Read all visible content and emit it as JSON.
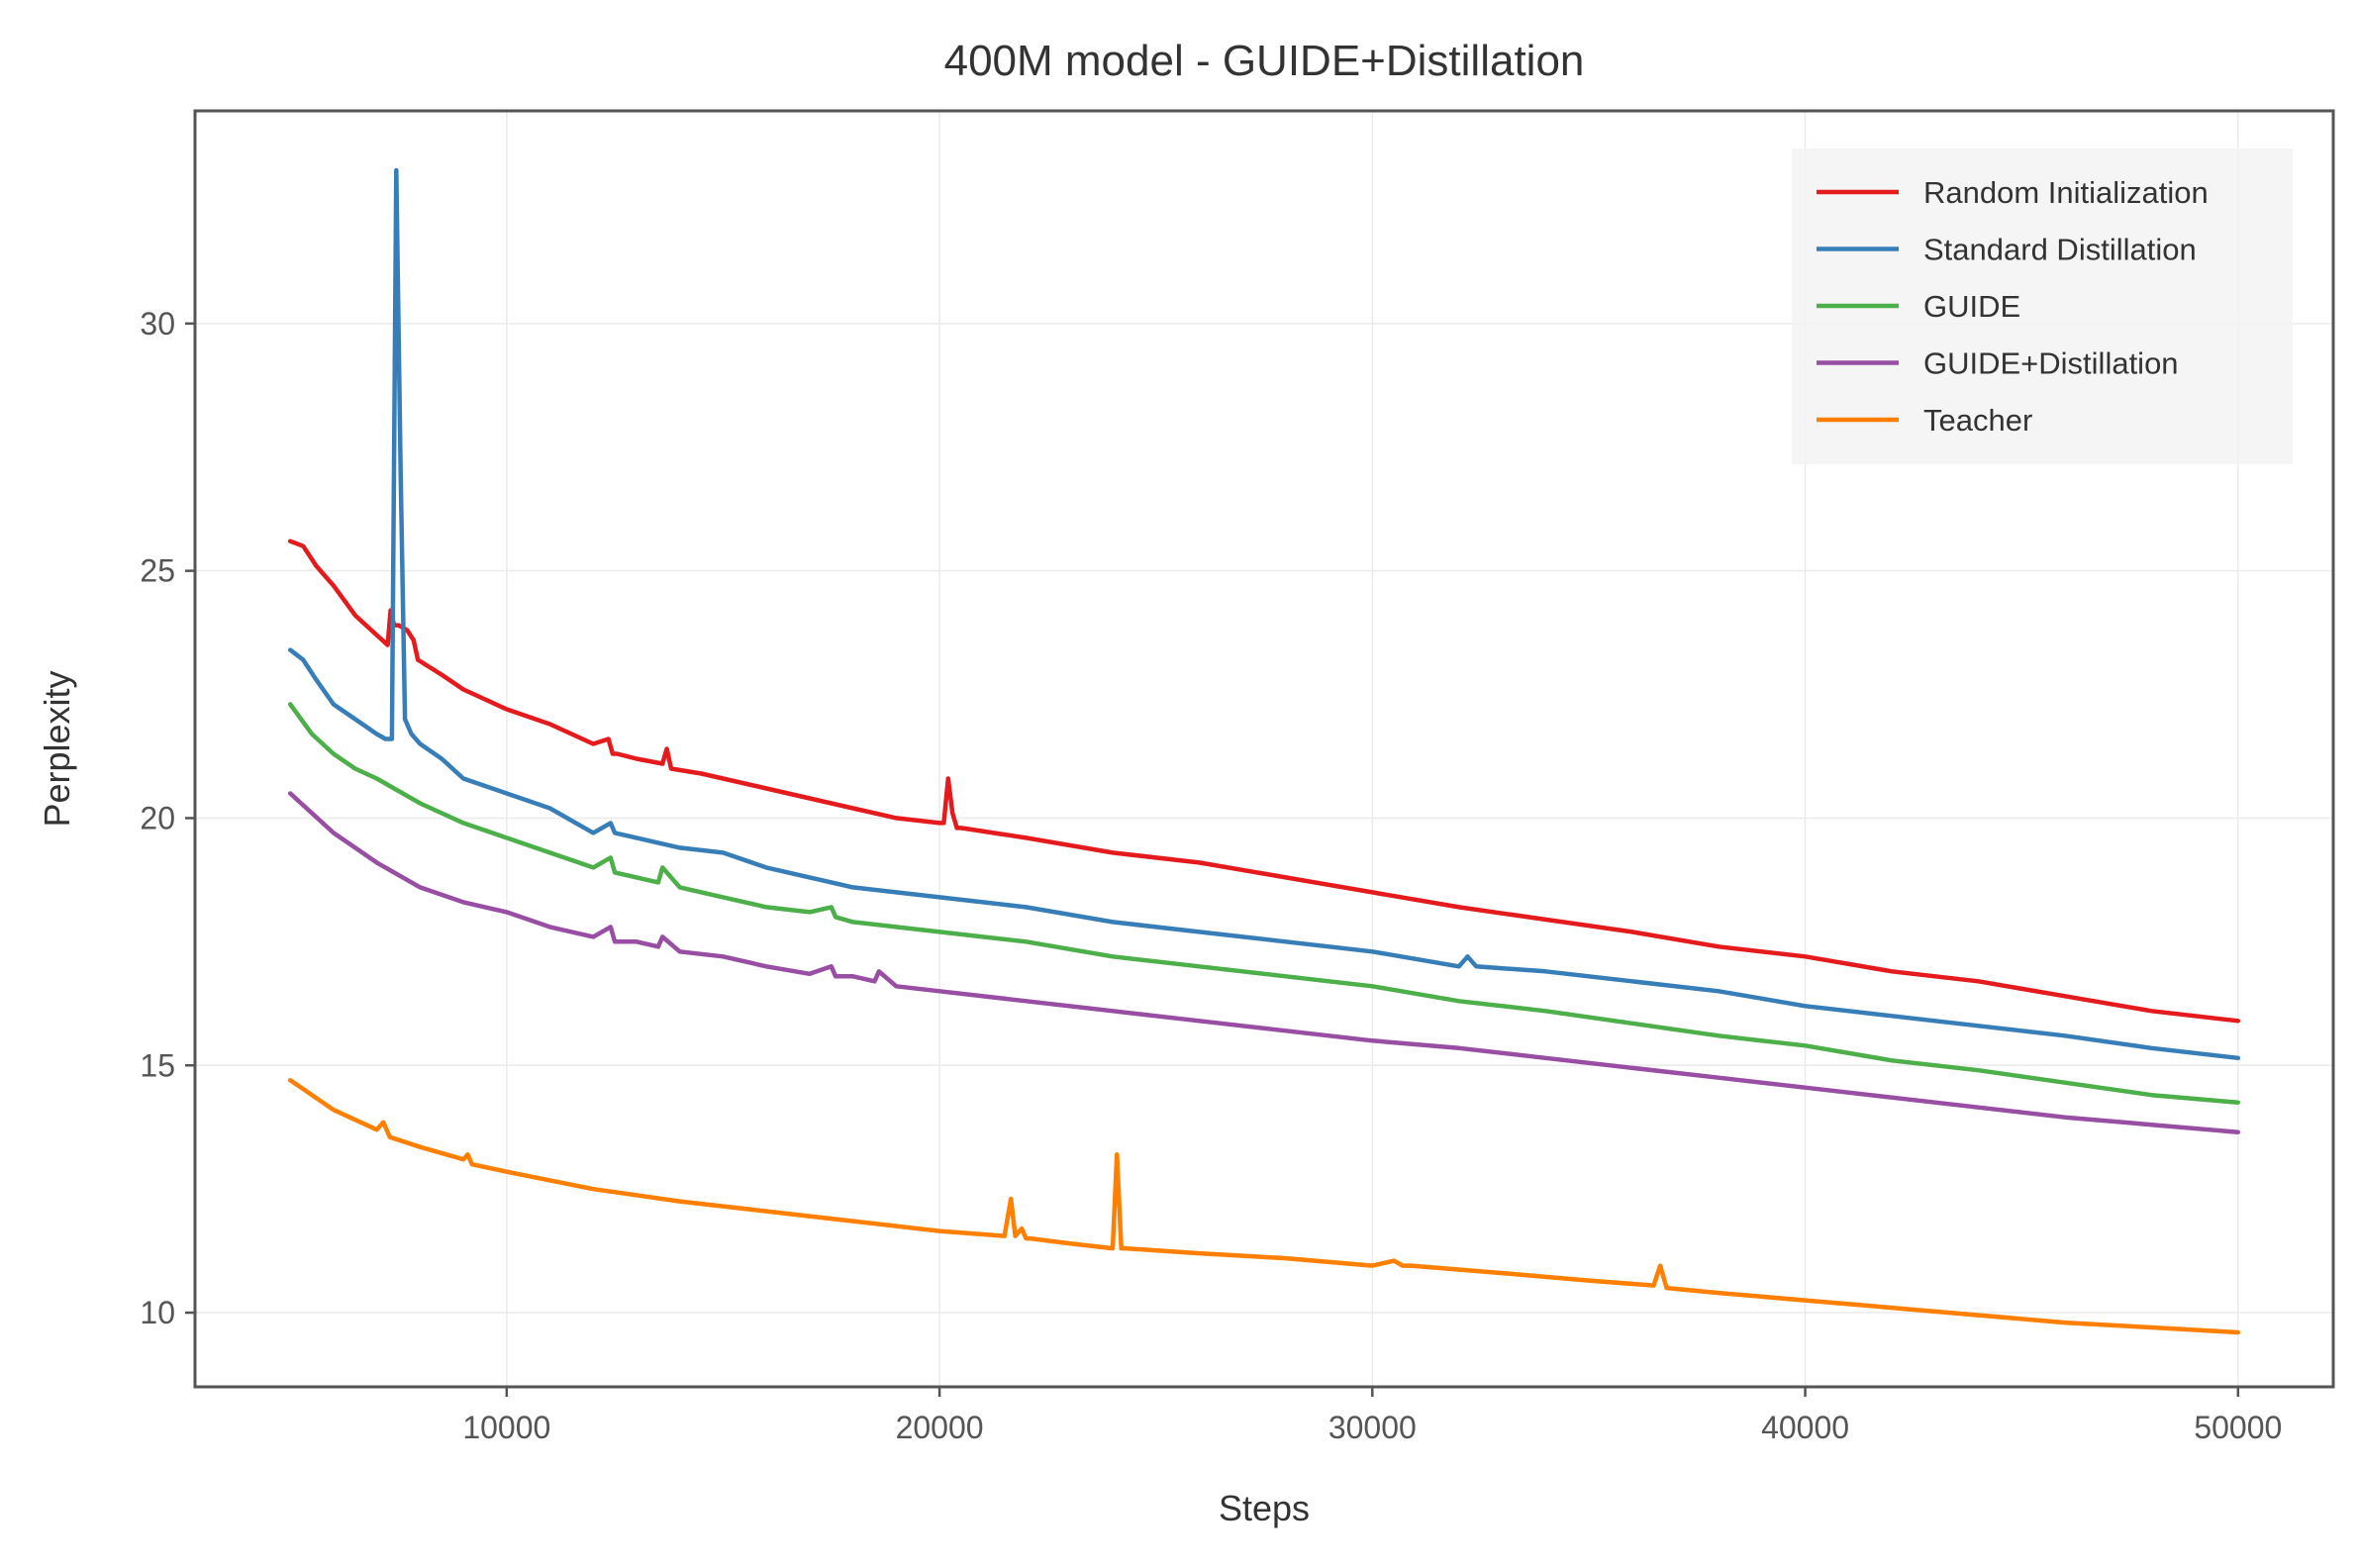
{
  "chart_data": {
    "type": "line",
    "title": "400M model - GUIDE+Distillation",
    "xlabel": "Steps",
    "ylabel": "Perplexity",
    "xlim": [
      2800,
      52200
    ],
    "ylim": [
      8.5,
      34.3
    ],
    "xticks": [
      10000,
      20000,
      30000,
      40000,
      50000
    ],
    "yticks": [
      10,
      15,
      20,
      25,
      30
    ],
    "grid": true,
    "legend_position": "top-right",
    "series": [
      {
        "name": "Random Initialization",
        "color": "#e41a1c",
        "x": [
          5000,
          5300,
          5600,
          6000,
          6500,
          7000,
          7250,
          7320,
          7400,
          7500,
          7700,
          7850,
          7950,
          8500,
          9000,
          9500,
          10000,
          11000,
          12000,
          12350,
          12450,
          12550,
          13000,
          13600,
          13700,
          13800,
          14500,
          15000,
          16000,
          17000,
          18000,
          19000,
          20000,
          20100,
          20200,
          20300,
          20400,
          20500,
          22000,
          24000,
          26000,
          28000,
          30000,
          32000,
          34000,
          36000,
          38000,
          40000,
          42000,
          44000,
          46000,
          48000,
          50000
        ],
        "y": [
          25.6,
          25.5,
          25.1,
          24.7,
          24.1,
          23.7,
          23.5,
          24.2,
          23.9,
          23.9,
          23.8,
          23.6,
          23.2,
          22.9,
          22.6,
          22.4,
          22.2,
          21.9,
          21.5,
          21.6,
          21.3,
          21.3,
          21.2,
          21.1,
          21.4,
          21.0,
          20.9,
          20.8,
          20.6,
          20.4,
          20.2,
          20.0,
          19.9,
          19.9,
          20.8,
          20.1,
          19.8,
          19.8,
          19.6,
          19.3,
          19.1,
          18.8,
          18.5,
          18.2,
          17.95,
          17.7,
          17.4,
          17.2,
          16.9,
          16.7,
          16.4,
          16.1,
          15.9
        ]
      },
      {
        "name": "Standard Distillation",
        "color": "#377eb8",
        "x": [
          5000,
          5300,
          5600,
          6000,
          6500,
          7000,
          7200,
          7350,
          7450,
          7550,
          7650,
          7800,
          8000,
          8500,
          9000,
          10000,
          11000,
          12000,
          12400,
          12500,
          13000,
          14000,
          15000,
          16000,
          17000,
          18000,
          19000,
          20000,
          22000,
          24000,
          26000,
          28000,
          30000,
          32000,
          32200,
          32400,
          34000,
          36000,
          38000,
          40000,
          42000,
          44000,
          46000,
          48000,
          50000
        ],
        "y": [
          23.4,
          23.2,
          22.8,
          22.3,
          22.0,
          21.7,
          21.6,
          21.6,
          33.1,
          27.0,
          22.0,
          21.7,
          21.5,
          21.2,
          20.8,
          20.5,
          20.2,
          19.7,
          19.9,
          19.7,
          19.6,
          19.4,
          19.3,
          19.0,
          18.8,
          18.6,
          18.5,
          18.4,
          18.2,
          17.9,
          17.7,
          17.5,
          17.3,
          17.0,
          17.2,
          17.0,
          16.9,
          16.7,
          16.5,
          16.2,
          16.0,
          15.8,
          15.6,
          15.35,
          15.15
        ]
      },
      {
        "name": "GUIDE",
        "color": "#4daf4a",
        "x": [
          5000,
          5500,
          6000,
          6500,
          7000,
          8000,
          9000,
          10000,
          11000,
          12000,
          12400,
          12500,
          13000,
          13500,
          13600,
          14000,
          15000,
          16000,
          17000,
          17500,
          17600,
          18000,
          19000,
          20000,
          22000,
          24000,
          26000,
          28000,
          30000,
          32000,
          34000,
          36000,
          38000,
          40000,
          42000,
          44000,
          46000,
          48000,
          50000
        ],
        "y": [
          22.3,
          21.7,
          21.3,
          21.0,
          20.8,
          20.3,
          19.9,
          19.6,
          19.3,
          19.0,
          19.2,
          18.9,
          18.8,
          18.7,
          19.0,
          18.6,
          18.4,
          18.2,
          18.1,
          18.2,
          18.0,
          17.9,
          17.8,
          17.7,
          17.5,
          17.2,
          17.0,
          16.8,
          16.6,
          16.3,
          16.1,
          15.85,
          15.6,
          15.4,
          15.1,
          14.9,
          14.65,
          14.4,
          14.25
        ]
      },
      {
        "name": "GUIDE+Distillation",
        "color": "#984ea3",
        "x": [
          5000,
          5500,
          6000,
          6500,
          7000,
          8000,
          9000,
          10000,
          11000,
          12000,
          12400,
          12500,
          13000,
          13500,
          13600,
          14000,
          15000,
          16000,
          17000,
          17500,
          17600,
          18000,
          18500,
          18600,
          19000,
          20000,
          22000,
          24000,
          26000,
          28000,
          30000,
          32000,
          34000,
          36000,
          38000,
          40000,
          42000,
          44000,
          46000,
          48000,
          50000
        ],
        "y": [
          20.5,
          20.1,
          19.7,
          19.4,
          19.1,
          18.6,
          18.3,
          18.1,
          17.8,
          17.6,
          17.8,
          17.5,
          17.5,
          17.4,
          17.6,
          17.3,
          17.2,
          17.0,
          16.85,
          17.0,
          16.8,
          16.8,
          16.7,
          16.9,
          16.6,
          16.5,
          16.3,
          16.1,
          15.9,
          15.7,
          15.5,
          15.35,
          15.15,
          14.95,
          14.75,
          14.55,
          14.35,
          14.15,
          13.95,
          13.8,
          13.65
        ]
      },
      {
        "name": "Teacher",
        "color": "#ff7f00",
        "x": [
          5000,
          5500,
          6000,
          6500,
          7000,
          7150,
          7300,
          8000,
          9000,
          9100,
          9200,
          10000,
          12000,
          14000,
          15000,
          16000,
          18000,
          20000,
          21500,
          21650,
          21750,
          21900,
          22000,
          22100,
          23000,
          24000,
          24100,
          24200,
          24300,
          26000,
          28000,
          30000,
          30500,
          30700,
          30900,
          33000,
          35000,
          36500,
          36650,
          36800,
          38000,
          40000,
          42000,
          44000,
          46000,
          48000,
          50000
        ],
        "y": [
          14.7,
          14.4,
          14.1,
          13.9,
          13.7,
          13.85,
          13.55,
          13.35,
          13.1,
          13.2,
          13.0,
          12.85,
          12.5,
          12.25,
          12.15,
          12.05,
          11.85,
          11.65,
          11.55,
          12.3,
          11.55,
          11.7,
          11.5,
          11.5,
          11.4,
          11.3,
          13.2,
          11.3,
          11.3,
          11.2,
          11.1,
          10.95,
          11.05,
          10.95,
          10.95,
          10.8,
          10.65,
          10.55,
          10.95,
          10.5,
          10.4,
          10.25,
          10.1,
          9.95,
          9.8,
          9.7,
          9.6
        ]
      }
    ]
  }
}
